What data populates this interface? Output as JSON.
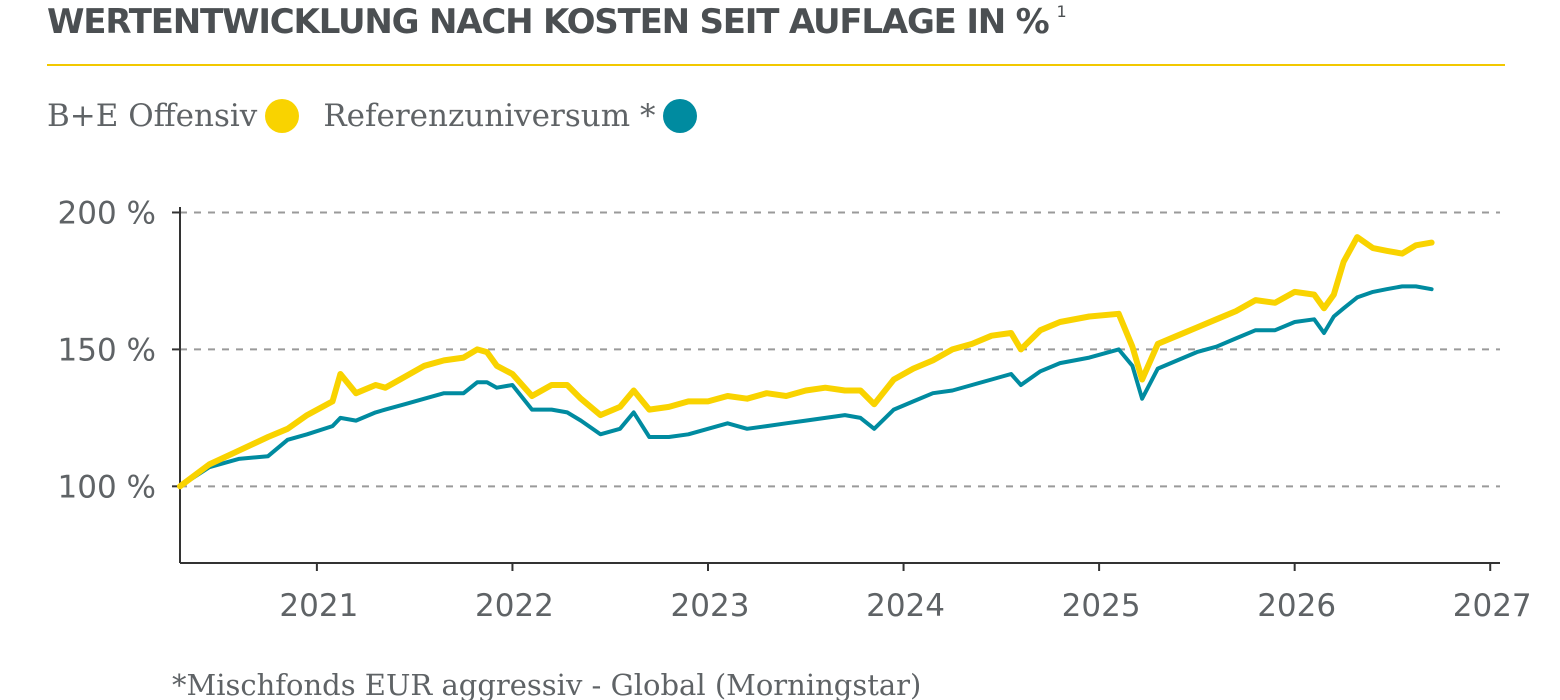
{
  "page": {
    "title": "WERTENTWICKLUNG NACH KOSTEN SEIT AUFLAGE IN %",
    "title_superscript": "1",
    "footnote": "*Mischfonds EUR aggressiv - Global (Morningstar)"
  },
  "chart_data": {
    "type": "line",
    "title": "WERTENTWICKLUNG NACH KOSTEN SEIT AUFLAGE IN %",
    "xlabel": "",
    "ylabel": "",
    "x_ticks": [
      2021,
      2022,
      2023,
      2024,
      2025,
      2026,
      2027
    ],
    "y_ticks": [
      {
        "value": 100,
        "label": "100 %"
      },
      {
        "value": 150,
        "label": "150 %"
      },
      {
        "value": 200,
        "label": "200 %"
      }
    ],
    "xlim": [
      2020.3,
      2027.05
    ],
    "ylim": [
      72,
      202
    ],
    "grid": "horizontal-dashed",
    "legend_position": "top-left",
    "series": [
      {
        "name": "B+E Offensiv",
        "color": "#f9d300",
        "x": [
          2020.3,
          2020.45,
          2020.6,
          2020.75,
          2020.85,
          2020.95,
          2021.08,
          2021.12,
          2021.2,
          2021.3,
          2021.35,
          2021.45,
          2021.55,
          2021.65,
          2021.75,
          2021.82,
          2021.87,
          2021.92,
          2022.0,
          2022.1,
          2022.2,
          2022.28,
          2022.35,
          2022.45,
          2022.55,
          2022.62,
          2022.7,
          2022.8,
          2022.9,
          2023.0,
          2023.1,
          2023.2,
          2023.3,
          2023.4,
          2023.5,
          2023.6,
          2023.7,
          2023.78,
          2023.85,
          2023.95,
          2024.05,
          2024.15,
          2024.25,
          2024.35,
          2024.45,
          2024.55,
          2024.6,
          2024.7,
          2024.8,
          2024.95,
          2025.1,
          2025.17,
          2025.22,
          2025.3,
          2025.4,
          2025.5,
          2025.6,
          2025.7,
          2025.8,
          2025.9,
          2026.0,
          2026.1,
          2026.15,
          2026.2,
          2026.25,
          2026.32,
          2026.4,
          2026.47,
          2026.55,
          2026.62,
          2026.7
        ],
        "values": [
          100,
          108,
          113,
          118,
          121,
          126,
          131,
          141,
          134,
          137,
          136,
          140,
          144,
          146,
          147,
          150,
          149,
          144,
          141,
          133,
          137,
          137,
          132,
          126,
          129,
          135,
          128,
          129,
          131,
          131,
          133,
          132,
          134,
          133,
          135,
          136,
          135,
          135,
          130,
          139,
          143,
          146,
          150,
          152,
          155,
          156,
          150,
          157,
          160,
          162,
          163,
          151,
          139,
          152,
          155,
          158,
          161,
          164,
          168,
          167,
          171,
          170,
          165,
          170,
          182,
          191,
          187,
          186,
          185,
          188,
          189
        ]
      },
      {
        "name": "Referenzuniversum *",
        "color": "#008ba0",
        "x": [
          2020.3,
          2020.45,
          2020.6,
          2020.75,
          2020.85,
          2020.95,
          2021.08,
          2021.12,
          2021.2,
          2021.3,
          2021.35,
          2021.45,
          2021.55,
          2021.65,
          2021.75,
          2021.82,
          2021.87,
          2021.92,
          2022.0,
          2022.1,
          2022.2,
          2022.28,
          2022.35,
          2022.45,
          2022.55,
          2022.62,
          2022.7,
          2022.8,
          2022.9,
          2023.0,
          2023.1,
          2023.2,
          2023.3,
          2023.4,
          2023.5,
          2023.6,
          2023.7,
          2023.78,
          2023.85,
          2023.95,
          2024.05,
          2024.15,
          2024.25,
          2024.35,
          2024.45,
          2024.55,
          2024.6,
          2024.7,
          2024.8,
          2024.95,
          2025.1,
          2025.17,
          2025.22,
          2025.3,
          2025.4,
          2025.5,
          2025.6,
          2025.7,
          2025.8,
          2025.9,
          2026.0,
          2026.1,
          2026.15,
          2026.2,
          2026.25,
          2026.32,
          2026.4,
          2026.47,
          2026.55,
          2026.62,
          2026.7
        ],
        "values": [
          100,
          107,
          110,
          111,
          117,
          119,
          122,
          125,
          124,
          127,
          128,
          130,
          132,
          134,
          134,
          138,
          138,
          136,
          137,
          128,
          128,
          127,
          124,
          119,
          121,
          127,
          118,
          118,
          119,
          121,
          123,
          121,
          122,
          123,
          124,
          125,
          126,
          125,
          121,
          128,
          131,
          134,
          135,
          137,
          139,
          141,
          137,
          142,
          145,
          147,
          150,
          144,
          132,
          143,
          146,
          149,
          151,
          154,
          157,
          157,
          160,
          161,
          156,
          162,
          165,
          169,
          171,
          172,
          173,
          173,
          172
        ]
      }
    ]
  }
}
